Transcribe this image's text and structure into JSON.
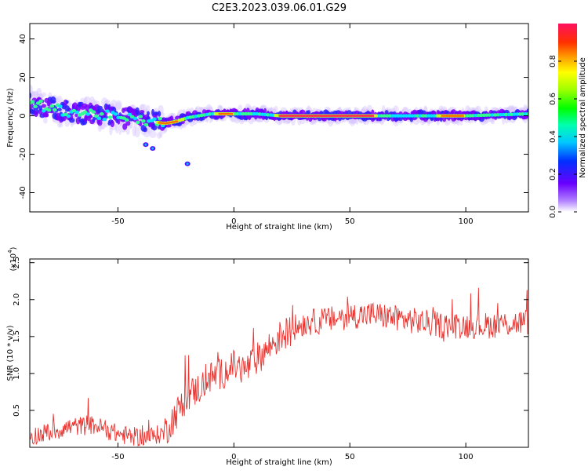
{
  "title": "C2E3.2023.039.06.01.G29",
  "chart_data": [
    {
      "type": "heatmap",
      "xlabel": "Height of straight line (km)",
      "ylabel": "Frequency (Hz)",
      "xlim": [
        -88,
        127
      ],
      "ylim": [
        -50,
        48
      ],
      "xticks": [
        -50,
        0,
        50,
        100
      ],
      "yticks": [
        40,
        20,
        0,
        -20,
        -40
      ],
      "colorbar": {
        "label": "Normalized spectral amplitude",
        "range": [
          0.0,
          1.0
        ],
        "ticks": [
          "0.0",
          "0.2",
          "0.4",
          "0.6",
          "0.8"
        ]
      },
      "ridge": {
        "x": [
          -88,
          -80,
          -70,
          -60,
          -50,
          -42,
          -35,
          -30,
          -25,
          -20,
          -10,
          0,
          10,
          20,
          40,
          60,
          80,
          100,
          127
        ],
        "y": [
          7,
          4,
          2,
          1,
          -1,
          -2,
          -3,
          -4,
          -3,
          -1,
          1,
          1,
          1,
          0,
          0,
          0,
          0,
          0,
          1
        ]
      },
      "outliers": [
        {
          "x": -38,
          "y": -15
        },
        {
          "x": -35,
          "y": -17
        },
        {
          "x": -20,
          "y": -25
        }
      ]
    },
    {
      "type": "line",
      "xlabel": "Height of straight line (km)",
      "ylabel": "SNR (10 * v/v)",
      "y_multiplier": "(x10",
      "y_multiplier_exp": "4",
      "xlim": [
        -88,
        127
      ],
      "ylim": [
        0,
        2.55
      ],
      "xticks": [
        -50,
        0,
        50,
        100
      ],
      "yticks": [
        "0.5",
        "1.0",
        "1.5",
        "2.0",
        "2.5"
      ],
      "color": "#e8332f",
      "series": [
        {
          "x": [
            -88,
            -80,
            -70,
            -60,
            -50,
            -45,
            -40,
            -35,
            -30,
            -25,
            -20,
            -15,
            -10,
            -5,
            0,
            5,
            10,
            15,
            20,
            25,
            30,
            40,
            50,
            60,
            70,
            80,
            90,
            100,
            110,
            120,
            127
          ],
          "values": [
            0.15,
            0.2,
            0.28,
            0.3,
            0.18,
            0.15,
            0.14,
            0.15,
            0.2,
            0.45,
            0.7,
            0.8,
            0.95,
            1.0,
            1.1,
            1.05,
            1.2,
            1.35,
            1.5,
            1.6,
            1.68,
            1.72,
            1.78,
            1.8,
            1.75,
            1.7,
            1.65,
            1.65,
            1.65,
            1.68,
            1.7
          ]
        }
      ]
    }
  ]
}
